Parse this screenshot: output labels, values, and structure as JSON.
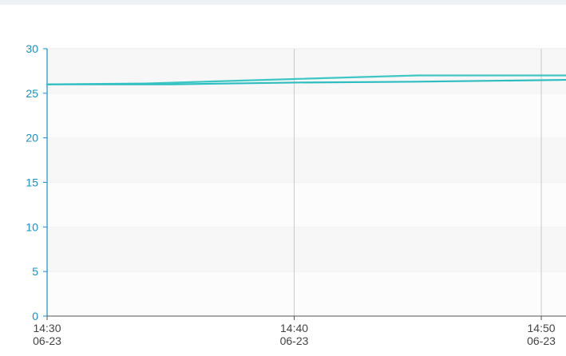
{
  "chart_data": {
    "type": "line",
    "x": [
      "14:30\n06-23",
      "14:40\n06-23",
      "14:50\n06-23"
    ],
    "x_minutes": [
      0,
      10,
      20
    ],
    "xlim_minutes": [
      0,
      21
    ],
    "ylim": [
      0,
      30
    ],
    "yticks": [
      0,
      5,
      10,
      15,
      20,
      25,
      30
    ],
    "grid": true,
    "series": [
      {
        "color": "#3cc7c5",
        "points": [
          [
            0,
            26.0
          ],
          [
            4,
            26.1
          ],
          [
            10,
            26.6
          ],
          [
            15,
            27.0
          ],
          [
            21,
            27.0
          ]
        ]
      },
      {
        "color": "#2cbdc1",
        "points": [
          [
            0,
            26.0
          ],
          [
            5,
            26.0
          ],
          [
            10,
            26.2
          ],
          [
            15,
            26.3
          ],
          [
            21,
            26.5
          ]
        ]
      }
    ],
    "colors": {
      "axis": "#1a8fc6",
      "grid_band": "#f7f7f7",
      "vgrid": "#c9c9c9"
    }
  }
}
